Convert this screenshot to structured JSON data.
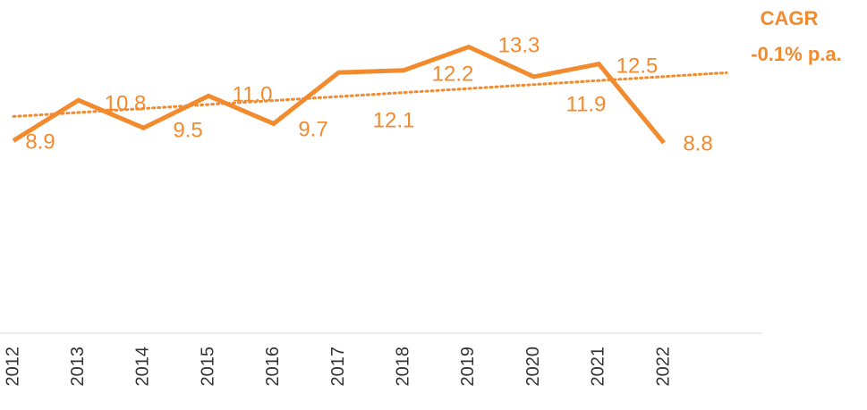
{
  "chart_data": {
    "type": "line",
    "categories": [
      "2012",
      "2013",
      "2014",
      "2015",
      "2016",
      "2017",
      "2018",
      "2019",
      "2020",
      "2021",
      "2022"
    ],
    "series": [
      {
        "color": "#f28a2e",
        "values": [
          8.9,
          10.8,
          9.5,
          11.0,
          9.7,
          12.1,
          12.2,
          13.3,
          11.9,
          12.5,
          8.8
        ],
        "value_labels": [
          "8.9",
          "10.8",
          "9.5",
          "11.0",
          "9.7",
          "12.1",
          "12.2",
          "13.3",
          "11.9",
          "12.5",
          "8.8"
        ]
      }
    ],
    "ylim": [
      0,
      15.5
    ],
    "trendline": true,
    "annotations": [
      "CAGR",
      "-0.1% p.a."
    ]
  }
}
